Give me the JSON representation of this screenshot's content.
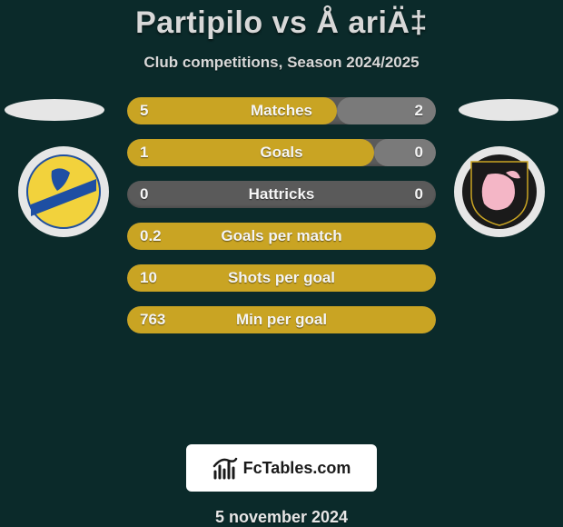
{
  "background_color": "#0b2a2a",
  "title": {
    "text": "Partipilo vs Å ariÄ‡",
    "color": "#d8d8d8",
    "fontsize": 34
  },
  "subtitle": {
    "text": "Club competitions, Season 2024/2025",
    "color": "#d8d8d8",
    "fontsize": 17
  },
  "side_ellipse_color": "#e6e6e6",
  "crest_bg": "#e6e6e6",
  "left_crest": {
    "bg": "#f2d23c",
    "stripe": "#1e4fa3"
  },
  "right_crest": {
    "bg": "#1a1a1a",
    "accent": "#f4b6c6"
  },
  "bars": {
    "track_color": "#5a5a5a",
    "left_fill_color": "#c9a423",
    "right_fill_color": "#7a7a7a",
    "label_color": "#f5f5f5",
    "label_fontsize": 17,
    "value_color": "#f5f5f5",
    "value_fontsize": 17,
    "rows": [
      {
        "label": "Matches",
        "left_val": "5",
        "right_val": "2",
        "left_pct": 68,
        "right_pct": 32
      },
      {
        "label": "Goals",
        "left_val": "1",
        "right_val": "0",
        "left_pct": 80,
        "right_pct": 20
      },
      {
        "label": "Hattricks",
        "left_val": "0",
        "right_val": "0",
        "left_pct": 0,
        "right_pct": 0
      },
      {
        "label": "Goals per match",
        "left_val": "0.2",
        "right_val": "",
        "left_pct": 100,
        "right_pct": 0
      },
      {
        "label": "Shots per goal",
        "left_val": "10",
        "right_val": "",
        "left_pct": 100,
        "right_pct": 0
      },
      {
        "label": "Min per goal",
        "left_val": "763",
        "right_val": "",
        "left_pct": 100,
        "right_pct": 0
      }
    ]
  },
  "brand": {
    "box_bg": "#ffffff",
    "text": "FcTables.com",
    "text_color": "#1a1a1a",
    "fontsize": 18,
    "icon_color": "#1a1a1a"
  },
  "date": {
    "text": "5 november 2024",
    "color": "#e6e6e6",
    "fontsize": 18
  }
}
